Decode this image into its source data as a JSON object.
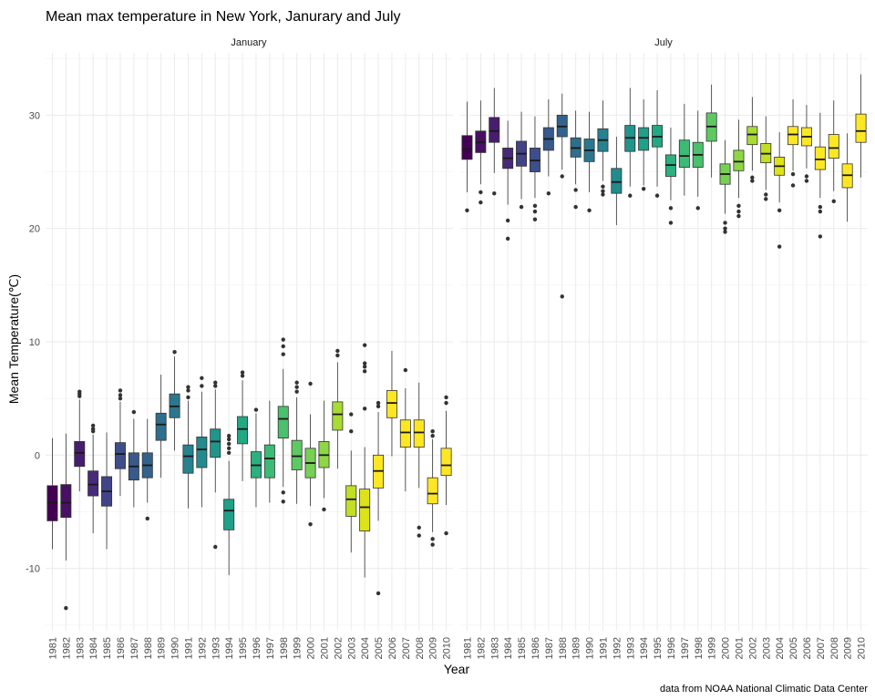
{
  "chart_data": {
    "type": "boxplot",
    "title": "Mean max temperature in New York, Janurary and July",
    "xlabel": "Year",
    "ylabel": "Mean Temperature(℃)",
    "caption": "data from NOAA National Climatic Data Center",
    "ylim": [
      -15.5,
      35.5
    ],
    "yticks": [
      -10,
      0,
      10,
      20,
      30
    ],
    "grid": true,
    "legend": "none",
    "palette": "viridis",
    "categories": [
      "1981",
      "1982",
      "1983",
      "1984",
      "1985",
      "1986",
      "1987",
      "1988",
      "1989",
      "1990",
      "1991",
      "1992",
      "1993",
      "1994",
      "1995",
      "1996",
      "1997",
      "1998",
      "1999",
      "2000",
      "2001",
      "2002",
      "2003",
      "2004",
      "2005",
      "2006",
      "2007",
      "2008",
      "2009",
      "2010"
    ],
    "colors": [
      "#440154",
      "#471063",
      "#481d6f",
      "#472a7a",
      "#414487",
      "#3d4e8a",
      "#38598c",
      "#33638d",
      "#2e6f8e",
      "#2a788e",
      "#26828e",
      "#228b8d",
      "#1f958b",
      "#1fa088",
      "#22a884",
      "#2bb07f",
      "#3bbb75",
      "#4ac16d",
      "#5ec962",
      "#76d054",
      "#8ed645",
      "#a8db34",
      "#c2df23",
      "#dde318",
      "#fde725",
      "#fde725",
      "#fde725",
      "#fde725",
      "#fde725",
      "#fde725"
    ],
    "facets": [
      {
        "label": "January",
        "boxes": [
          {
            "year": "1981",
            "min": -8.3,
            "q1": -5.8,
            "median": -4.2,
            "q3": -2.7,
            "max": 1.5,
            "outliers": []
          },
          {
            "year": "1982",
            "min": -9.3,
            "q1": -5.5,
            "median": -4.2,
            "q3": -2.6,
            "max": 1.9,
            "outliers": [
              -13.5
            ]
          },
          {
            "year": "1983",
            "min": -3.2,
            "q1": -1.0,
            "median": 0.2,
            "q3": 1.2,
            "max": 4.9,
            "outliers": [
              5.2,
              5.4,
              5.6
            ]
          },
          {
            "year": "1984",
            "min": -6.9,
            "q1": -3.6,
            "median": -2.6,
            "q3": -1.4,
            "max": 1.8,
            "outliers": [
              2.1,
              2.3,
              2.6
            ]
          },
          {
            "year": "1985",
            "min": -8.3,
            "q1": -4.5,
            "median": -3.2,
            "q3": -1.9,
            "max": 2.0,
            "outliers": []
          },
          {
            "year": "1986",
            "min": -3.6,
            "q1": -1.2,
            "median": 0.1,
            "q3": 1.1,
            "max": 4.7,
            "outliers": [
              5.0,
              5.3,
              5.7
            ]
          },
          {
            "year": "1987",
            "min": -4.6,
            "q1": -2.2,
            "median": -1.0,
            "q3": 0.2,
            "max": 3.2,
            "outliers": [
              3.8
            ]
          },
          {
            "year": "1988",
            "min": -4.2,
            "q1": -2.0,
            "median": -0.9,
            "q3": 0.2,
            "max": 3.2,
            "outliers": [
              -5.6
            ]
          },
          {
            "year": "1989",
            "min": -2.0,
            "q1": 1.3,
            "median": 2.7,
            "q3": 3.7,
            "max": 7.1,
            "outliers": []
          },
          {
            "year": "1990",
            "min": 0.4,
            "q1": 3.3,
            "median": 4.3,
            "q3": 5.4,
            "max": 8.7,
            "outliers": [
              9.1
            ]
          },
          {
            "year": "1991",
            "min": -4.7,
            "q1": -1.6,
            "median": -0.1,
            "q3": 0.9,
            "max": 4.8,
            "outliers": [
              5.1,
              5.7,
              6.0
            ]
          },
          {
            "year": "1992",
            "min": -4.6,
            "q1": -1.1,
            "median": 0.5,
            "q3": 1.6,
            "max": 5.6,
            "outliers": [
              6.1,
              6.8
            ]
          },
          {
            "year": "1993",
            "min": -3.3,
            "q1": -0.2,
            "median": 1.2,
            "q3": 2.3,
            "max": 5.8,
            "outliers": [
              6.1,
              6.4,
              -8.1
            ]
          },
          {
            "year": "1994",
            "min": -10.6,
            "q1": -6.6,
            "median": -4.9,
            "q3": -3.9,
            "max": -0.5,
            "outliers": [
              0.2,
              0.6,
              1.0,
              1.4,
              1.7
            ]
          },
          {
            "year": "1995",
            "min": -2.3,
            "q1": 1.0,
            "median": 2.3,
            "q3": 3.4,
            "max": 6.6,
            "outliers": [
              7.0,
              7.3
            ]
          },
          {
            "year": "1996",
            "min": -4.6,
            "q1": -2.0,
            "median": -0.9,
            "q3": 0.3,
            "max": 3.7,
            "outliers": [
              4.0
            ]
          },
          {
            "year": "1997",
            "min": -4.2,
            "q1": -2.0,
            "median": -0.3,
            "q3": 0.9,
            "max": 4.8,
            "outliers": []
          },
          {
            "year": "1998",
            "min": -2.8,
            "q1": 1.5,
            "median": 3.2,
            "q3": 4.3,
            "max": 7.6,
            "outliers": [
              8.9,
              9.6,
              10.2,
              -3.3,
              -4.1
            ]
          },
          {
            "year": "1999",
            "min": -4.3,
            "q1": -1.3,
            "median": -0.1,
            "q3": 1.3,
            "max": 5.1,
            "outliers": [
              5.6,
              6.0,
              6.4
            ]
          },
          {
            "year": "2000",
            "min": -4.5,
            "q1": -2.0,
            "median": -0.7,
            "q3": 0.6,
            "max": 3.6,
            "outliers": [
              6.3,
              -6.1
            ]
          },
          {
            "year": "2001",
            "min": -3.8,
            "q1": -1.1,
            "median": 0.0,
            "q3": 1.2,
            "max": 4.8,
            "outliers": [
              -4.8
            ]
          },
          {
            "year": "2002",
            "min": -1.2,
            "q1": 2.2,
            "median": 3.6,
            "q3": 4.7,
            "max": 8.2,
            "outliers": [
              8.8,
              9.2
            ]
          },
          {
            "year": "2003",
            "min": -8.6,
            "q1": -5.4,
            "median": -3.9,
            "q3": -2.7,
            "max": 0.4,
            "outliers": [
              2.1,
              3.6
            ]
          },
          {
            "year": "2004",
            "min": -10.8,
            "q1": -6.7,
            "median": -4.6,
            "q3": -3.0,
            "max": 0.7,
            "outliers": [
              4.1,
              7.4,
              7.8,
              8.1,
              9.7
            ]
          },
          {
            "year": "2005",
            "min": -5.8,
            "q1": -2.9,
            "median": -1.4,
            "q3": 0.0,
            "max": 3.8,
            "outliers": [
              4.3,
              4.6,
              -12.2
            ]
          },
          {
            "year": "2006",
            "min": -0.1,
            "q1": 3.3,
            "median": 4.6,
            "q3": 5.7,
            "max": 9.2,
            "outliers": []
          },
          {
            "year": "2007",
            "min": -3.2,
            "q1": 0.7,
            "median": 2.0,
            "q3": 3.1,
            "max": 5.9,
            "outliers": [
              7.5
            ]
          },
          {
            "year": "2008",
            "min": -2.9,
            "q1": 0.7,
            "median": 2.0,
            "q3": 3.1,
            "max": 6.4,
            "outliers": [
              -6.4,
              -7.1
            ]
          },
          {
            "year": "2009",
            "min": -6.8,
            "q1": -4.3,
            "median": -3.4,
            "q3": -2.0,
            "max": 1.4,
            "outliers": [
              1.7,
              2.1,
              -7.4,
              -7.9
            ]
          },
          {
            "year": "2010",
            "min": -4.4,
            "q1": -1.8,
            "median": -0.9,
            "q3": 0.6,
            "max": 3.9,
            "outliers": [
              4.6,
              5.1,
              -6.9
            ]
          }
        ]
      },
      {
        "label": "July",
        "boxes": [
          {
            "year": "1981",
            "min": 23.2,
            "q1": 26.1,
            "median": 27.0,
            "q3": 28.2,
            "max": 31.2,
            "outliers": [
              21.6
            ]
          },
          {
            "year": "1982",
            "min": 23.9,
            "q1": 26.7,
            "median": 27.6,
            "q3": 28.6,
            "max": 31.3,
            "outliers": [
              23.2,
              22.3
            ]
          },
          {
            "year": "1983",
            "min": 24.9,
            "q1": 27.6,
            "median": 28.6,
            "q3": 29.8,
            "max": 32.4,
            "outliers": [
              23.1
            ]
          },
          {
            "year": "1984",
            "min": 22.1,
            "q1": 25.3,
            "median": 26.2,
            "q3": 27.1,
            "max": 29.5,
            "outliers": [
              20.7,
              19.1
            ]
          },
          {
            "year": "1985",
            "min": 22.6,
            "q1": 25.5,
            "median": 26.6,
            "q3": 27.7,
            "max": 30.3,
            "outliers": [
              21.9
            ]
          },
          {
            "year": "1986",
            "min": 22.7,
            "q1": 25.0,
            "median": 26.0,
            "q3": 27.1,
            "max": 29.9,
            "outliers": [
              22.0,
              21.5,
              20.8
            ]
          },
          {
            "year": "1987",
            "min": 24.6,
            "q1": 26.9,
            "median": 27.9,
            "q3": 28.9,
            "max": 31.4,
            "outliers": [
              23.1
            ]
          },
          {
            "year": "1988",
            "min": 25.2,
            "q1": 28.1,
            "median": 29.0,
            "q3": 30.0,
            "max": 31.9,
            "outliers": [
              24.6,
              14.0
            ]
          },
          {
            "year": "1989",
            "min": 23.9,
            "q1": 26.3,
            "median": 27.1,
            "q3": 28.0,
            "max": 30.4,
            "outliers": [
              23.4,
              21.9
            ]
          },
          {
            "year": "1990",
            "min": 23.2,
            "q1": 25.9,
            "median": 26.9,
            "q3": 27.9,
            "max": 30.3,
            "outliers": [
              21.6
            ]
          },
          {
            "year": "1991",
            "min": 24.2,
            "q1": 26.8,
            "median": 27.8,
            "q3": 28.8,
            "max": 31.3,
            "outliers": [
              23.7,
              23.3,
              23.0
            ]
          },
          {
            "year": "1992",
            "min": 20.3,
            "q1": 23.1,
            "median": 24.1,
            "q3": 25.3,
            "max": 28.1,
            "outliers": []
          },
          {
            "year": "1993",
            "min": 23.7,
            "q1": 26.8,
            "median": 28.0,
            "q3": 29.1,
            "max": 32.4,
            "outliers": [
              22.9
            ]
          },
          {
            "year": "1994",
            "min": 23.8,
            "q1": 26.9,
            "median": 28.0,
            "q3": 28.9,
            "max": 31.4,
            "outliers": [
              23.5
            ]
          },
          {
            "year": "1995",
            "min": 23.7,
            "q1": 27.2,
            "median": 28.1,
            "q3": 29.1,
            "max": 32.2,
            "outliers": [
              22.9
            ]
          },
          {
            "year": "1996",
            "min": 22.5,
            "q1": 24.6,
            "median": 25.6,
            "q3": 26.5,
            "max": 28.9,
            "outliers": [
              21.8,
              20.5
            ]
          },
          {
            "year": "1997",
            "min": 22.9,
            "q1": 25.4,
            "median": 26.4,
            "q3": 27.8,
            "max": 31.0,
            "outliers": []
          },
          {
            "year": "1998",
            "min": 22.8,
            "q1": 25.4,
            "median": 26.5,
            "q3": 27.6,
            "max": 30.4,
            "outliers": [
              21.8
            ]
          },
          {
            "year": "1999",
            "min": 24.5,
            "q1": 27.7,
            "median": 29.0,
            "q3": 30.2,
            "max": 32.7,
            "outliers": []
          },
          {
            "year": "2000",
            "min": 21.3,
            "q1": 23.9,
            "median": 24.8,
            "q3": 25.7,
            "max": 27.8,
            "outliers": [
              20.5,
              20.0,
              19.7
            ]
          },
          {
            "year": "2001",
            "min": 22.7,
            "q1": 25.1,
            "median": 25.9,
            "q3": 26.9,
            "max": 29.6,
            "outliers": [
              22.0,
              21.5,
              21.1
            ]
          },
          {
            "year": "2002",
            "min": 25.1,
            "q1": 27.4,
            "median": 28.3,
            "q3": 29.0,
            "max": 31.6,
            "outliers": [
              24.5,
              24.2
            ]
          },
          {
            "year": "2003",
            "min": 23.4,
            "q1": 25.8,
            "median": 26.6,
            "q3": 27.5,
            "max": 29.9,
            "outliers": [
              23.0,
              22.6
            ]
          },
          {
            "year": "2004",
            "min": 22.3,
            "q1": 24.7,
            "median": 25.5,
            "q3": 26.3,
            "max": 28.5,
            "outliers": [
              21.6,
              18.4
            ]
          },
          {
            "year": "2005",
            "min": 25.1,
            "q1": 27.4,
            "median": 28.3,
            "q3": 29.0,
            "max": 31.4,
            "outliers": [
              24.8,
              23.8
            ]
          },
          {
            "year": "2006",
            "min": 25.3,
            "q1": 27.3,
            "median": 28.1,
            "q3": 28.9,
            "max": 30.9,
            "outliers": [
              24.6,
              24.2
            ]
          },
          {
            "year": "2007",
            "min": 22.7,
            "q1": 25.2,
            "median": 26.1,
            "q3": 27.2,
            "max": 30.2,
            "outliers": [
              21.9,
              21.5,
              19.3
            ]
          },
          {
            "year": "2008",
            "min": 23.3,
            "q1": 26.2,
            "median": 27.1,
            "q3": 28.3,
            "max": 31.3,
            "outliers": [
              22.4
            ]
          },
          {
            "year": "2009",
            "min": 20.6,
            "q1": 23.6,
            "median": 24.7,
            "q3": 25.7,
            "max": 28.4,
            "outliers": []
          },
          {
            "year": "2010",
            "min": 24.5,
            "q1": 27.6,
            "median": 28.6,
            "q3": 30.1,
            "max": 33.6,
            "outliers": []
          }
        ]
      }
    ]
  }
}
